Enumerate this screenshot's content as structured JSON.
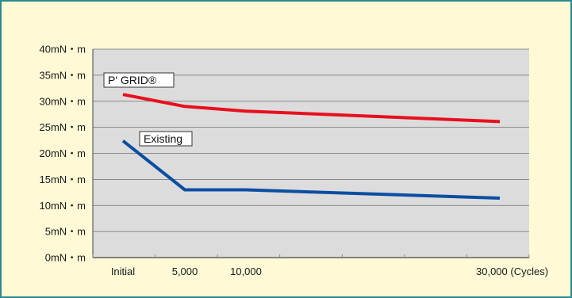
{
  "chart_data": {
    "type": "line",
    "title": "",
    "xlabel": "",
    "ylabel": "",
    "y_unit_suffix": "mN・m",
    "ylim": [
      0,
      40
    ],
    "y_ticks": [
      0,
      5,
      10,
      15,
      20,
      25,
      30,
      35,
      40
    ],
    "y_tick_labels": [
      "0mN・m",
      "5mN・m",
      "10mN・m",
      "15mN・m",
      "20mN・m",
      "25mN・m",
      "30mN・m",
      "35mN・m",
      "40mN・m"
    ],
    "x_ticks": [
      {
        "value": 0,
        "label": "Initial"
      },
      {
        "value": 5000,
        "label": "5,000"
      },
      {
        "value": 10000,
        "label": "10,000"
      },
      {
        "value": 30000,
        "label": "30,000 (Cycles)"
      }
    ],
    "grid": true,
    "series": [
      {
        "name": "P' GRID®",
        "color": "#e8101e",
        "x": [
          0,
          5000,
          10000,
          30000
        ],
        "y": [
          31.3,
          29.0,
          28.1,
          26.1
        ]
      },
      {
        "name": "Existing",
        "color": "#0b4ea2",
        "x": [
          0,
          5000,
          10000,
          30000
        ],
        "y": [
          22.4,
          13.0,
          13.0,
          11.4
        ]
      }
    ]
  },
  "colors": {
    "plot_background": "#dcdcdc",
    "frame_background": "#fff9d6",
    "frame_border": "#2a8a93"
  }
}
